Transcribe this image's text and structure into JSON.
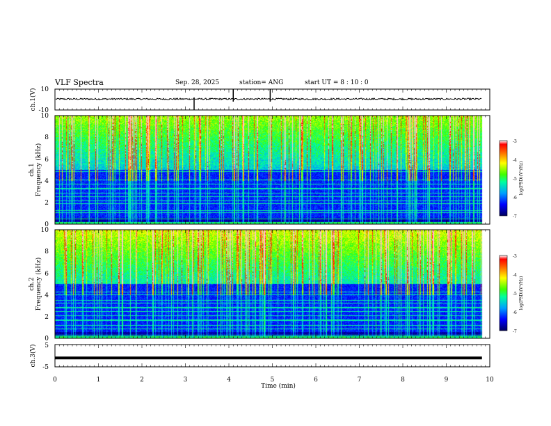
{
  "header": {
    "title": "VLF Spectra",
    "date": "Sep. 28, 2025",
    "station": "station= ANG",
    "start": "start  UT  =   8  : 10 : 0"
  },
  "colorbar": {
    "label": "log(PSD)(V²/Hz)",
    "ticks": [
      "-3",
      "-4",
      "-5",
      "-6",
      "-7"
    ]
  },
  "chart_data": [
    {
      "type": "line",
      "title": "",
      "ylabel": "ch.1(V)",
      "xlabel": "",
      "xlim": [
        0,
        10
      ],
      "ylim": [
        -10,
        10
      ],
      "y_ticks": [
        "10",
        "-10"
      ],
      "description_level": 0.5,
      "spikes_min": [
        3.2,
        4.1,
        4.95
      ]
    },
    {
      "type": "heatmap",
      "ylabel": "ch.1",
      "ylabel2": "Frequency (kHz)",
      "xlim": [
        0,
        10
      ],
      "ylim": [
        0,
        10
      ],
      "y_ticks": [
        "0",
        "2",
        "4",
        "6",
        "8",
        "10"
      ],
      "data_end_min": 9.82,
      "color_range": [
        -7,
        -3
      ]
    },
    {
      "type": "heatmap",
      "ylabel": "ch.2",
      "ylabel2": "Frequency (kHz)",
      "xlim": [
        0,
        10
      ],
      "ylim": [
        0,
        10
      ],
      "y_ticks": [
        "0",
        "2",
        "4",
        "6",
        "8",
        "10"
      ],
      "data_end_min": 9.82,
      "color_range": [
        -7,
        -3
      ]
    },
    {
      "type": "line",
      "ylabel": "ch.3(V)",
      "xlabel": "Time  (min)",
      "xlim": [
        0,
        10
      ],
      "ylim": [
        -5,
        5
      ],
      "y_ticks": [
        "5",
        "-5"
      ],
      "level": -1,
      "x_ticks": [
        "0",
        "1",
        "2",
        "3",
        "4",
        "5",
        "6",
        "7",
        "8",
        "9",
        "10"
      ]
    }
  ]
}
